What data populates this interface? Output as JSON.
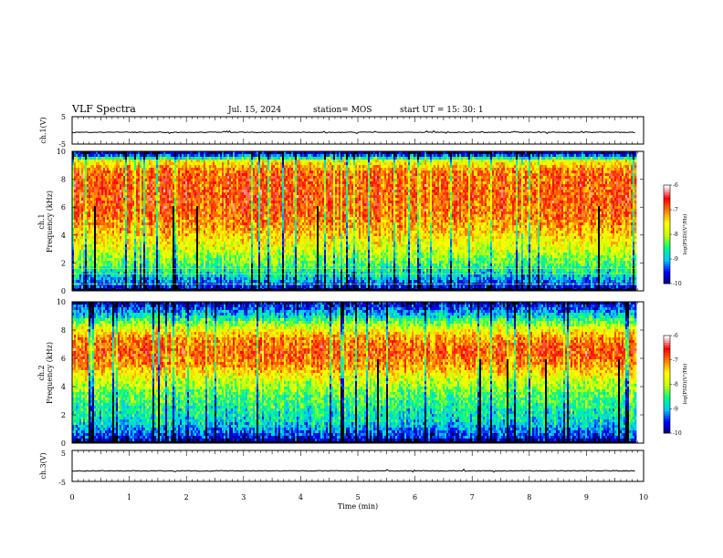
{
  "header": {
    "title": "VLF Spectra",
    "date": "Jul. 15, 2024",
    "station": "station= MOS",
    "start_ut": "start UT = 15: 30: 1"
  },
  "colors": {
    "colormap": [
      "#00006e",
      "#0000ff",
      "#00c8ff",
      "#00ff80",
      "#c8ff00",
      "#ffff00",
      "#ff8000",
      "#ff0000",
      "#ffffff"
    ],
    "trace": "#000000",
    "frame": "#000000"
  },
  "chart_data": [
    {
      "type": "line",
      "name": "ch1-voltage",
      "ylabel": "ch.1(V)",
      "xlim": [
        0,
        10
      ],
      "ylim": [
        -5,
        5
      ],
      "yticks": [
        "5",
        "-5"
      ],
      "level": -0.7
    },
    {
      "type": "heatmap",
      "name": "ch1-spectrogram",
      "ylabel_top": "ch.1",
      "ylabel": "Frequency (kHz)",
      "xlim": [
        0,
        9.85
      ],
      "ylim": [
        0,
        10
      ],
      "yticks": [
        "0",
        "2",
        "4",
        "6",
        "8",
        "10"
      ],
      "intensity_profile": [
        [
          0,
          -10
        ],
        [
          0.3,
          -9.5
        ],
        [
          1,
          -8.9
        ],
        [
          2,
          -8.3
        ],
        [
          3,
          -7.8
        ],
        [
          4.5,
          -7.2
        ],
        [
          5.5,
          -6.9
        ],
        [
          7,
          -6.8
        ],
        [
          8.5,
          -6.9
        ],
        [
          9.3,
          -7.6
        ],
        [
          9.6,
          -9
        ],
        [
          10,
          -10
        ]
      ],
      "colorbar": {
        "ticks": [
          "-6",
          "-7",
          "-8",
          "-9",
          "-10"
        ],
        "label": "log(PSD)(V²/Hz)",
        "range": [
          -10,
          -6
        ]
      }
    },
    {
      "type": "heatmap",
      "name": "ch2-spectrogram",
      "ylabel_top": "ch.2",
      "ylabel": "Frequency (kHz)",
      "xlim": [
        0,
        9.85
      ],
      "ylim": [
        0,
        10
      ],
      "yticks": [
        "0",
        "2",
        "4",
        "6",
        "8",
        "10"
      ],
      "intensity_profile": [
        [
          0,
          -10
        ],
        [
          0.5,
          -9.5
        ],
        [
          1.5,
          -8.8
        ],
        [
          2.5,
          -8.6
        ],
        [
          3.5,
          -8.3
        ],
        [
          4.5,
          -7.8
        ],
        [
          5.5,
          -7.1
        ],
        [
          6.5,
          -6.8
        ],
        [
          7.5,
          -7.1
        ],
        [
          8.3,
          -7.9
        ],
        [
          9,
          -8.8
        ],
        [
          9.5,
          -9.3
        ],
        [
          10,
          -9.8
        ]
      ],
      "colorbar": {
        "ticks": [
          "-6",
          "-7",
          "-8",
          "-9",
          "-10"
        ],
        "label": "log(PSD)(V²/Hz)",
        "range": [
          -10,
          -6
        ]
      }
    },
    {
      "type": "line",
      "name": "ch3-voltage",
      "ylabel": "ch.3(V)",
      "xlim": [
        0,
        10
      ],
      "ylim": [
        -5,
        5
      ],
      "yticks": [
        "5",
        "-5"
      ],
      "level": -1.6
    }
  ],
  "xaxis": {
    "label": "Time (min)",
    "range": [
      0,
      10
    ],
    "ticks": [
      "0",
      "1",
      "2",
      "3",
      "4",
      "5",
      "6",
      "7",
      "8",
      "9",
      "10"
    ]
  }
}
